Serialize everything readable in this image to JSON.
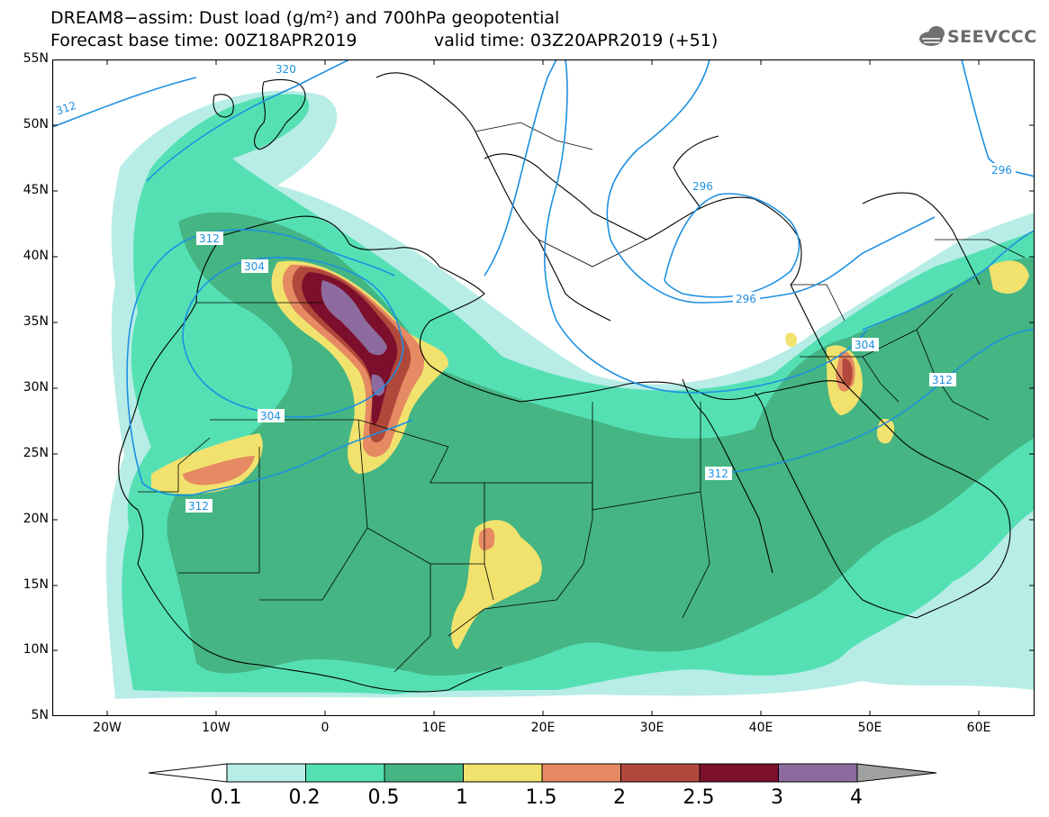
{
  "header": {
    "line1": "DREAM8−assim: Dust load (g/m²) and 700hPa geopotential",
    "line2a": "Forecast base time: 00Z18APR2019",
    "line2b": "valid time: 03Z20APR2019 (+51)"
  },
  "logo": {
    "text": "SEEVCCC",
    "icon": "cloud-icon"
  },
  "axes": {
    "lat_labels": [
      "55N",
      "50N",
      "45N",
      "40N",
      "35N",
      "30N",
      "25N",
      "20N",
      "15N",
      "10N",
      "5N"
    ],
    "lon_labels": [
      "20W",
      "10W",
      "0",
      "10E",
      "20E",
      "30E",
      "40E",
      "50E",
      "60E"
    ]
  },
  "contour_labels": [
    "320",
    "312",
    "312",
    "304",
    "304",
    "312",
    "296",
    "296",
    "304",
    "312",
    "312",
    "296"
  ],
  "colorbar": {
    "ticks": [
      "0.1",
      "0.2",
      "0.5",
      "1",
      "1.5",
      "2",
      "2.5",
      "3",
      "4"
    ],
    "colors": [
      "#b7ede6",
      "#55e0b4",
      "#44b583",
      "#f1e26e",
      "#e58a62",
      "#b0493b",
      "#7c0f2b",
      "#8e6b9f",
      "#a0a0a0"
    ]
  },
  "palette": {
    "land_outline": "#000000",
    "contour": "#1e90e0"
  }
}
